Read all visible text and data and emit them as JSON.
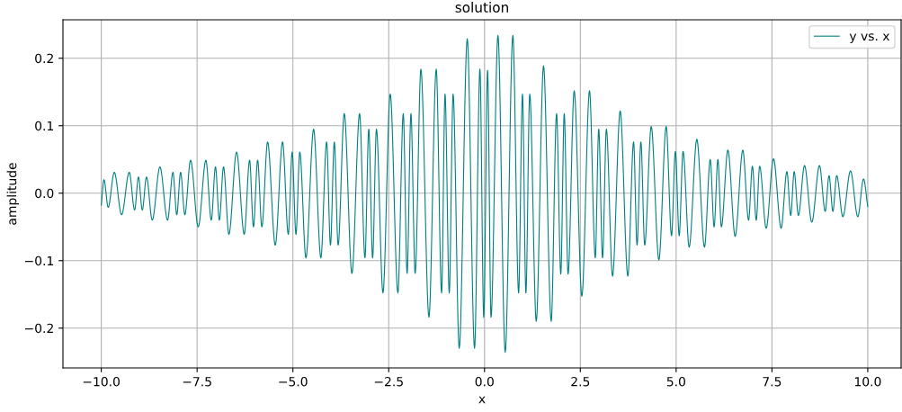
{
  "chart_data": {
    "type": "line",
    "title": "solution",
    "xlabel": "x",
    "ylabel": "amplitude",
    "xlim": [
      -11,
      10.87
    ],
    "ylim": [
      -0.259,
      0.257
    ],
    "xticks": [
      {
        "value": -10,
        "label": "−10.0"
      },
      {
        "value": -7.5,
        "label": "−7.5"
      },
      {
        "value": -5,
        "label": "−5.0"
      },
      {
        "value": -2.5,
        "label": "−2.5"
      },
      {
        "value": 0,
        "label": "0.0"
      },
      {
        "value": 2.5,
        "label": "2.5"
      },
      {
        "value": 5,
        "label": "5.0"
      },
      {
        "value": 7.5,
        "label": "7.5"
      },
      {
        "value": 10,
        "label": "10.0"
      }
    ],
    "yticks": [
      {
        "value": -0.2,
        "label": "−0.2"
      },
      {
        "value": -0.1,
        "label": "−0.1"
      },
      {
        "value": 0,
        "label": "0.0"
      },
      {
        "value": 0.1,
        "label": "0.1"
      },
      {
        "value": 0.2,
        "label": "0.2"
      }
    ],
    "grid": true,
    "legend": "top right",
    "marker": "none",
    "line_style": "solid",
    "series": [
      {
        "name": "y vs. x",
        "color": "#008080",
        "x": [
          -10.0,
          -9.93,
          -9.82,
          -9.66,
          -9.47,
          -9.27,
          -9.13,
          -9.03,
          -8.93,
          -8.82,
          -8.67,
          -8.47,
          -8.27,
          -8.13,
          -8.03,
          -7.93,
          -7.82,
          -7.67,
          -7.47,
          -7.27,
          -7.13,
          -7.02,
          -6.92,
          -6.81,
          -6.67,
          -6.47,
          -6.27,
          -6.13,
          -6.03,
          -5.92,
          -5.81,
          -5.66,
          -5.46,
          -5.27,
          -5.12,
          -5.02,
          -4.92,
          -4.82,
          -4.66,
          -4.46,
          -4.27,
          -4.12,
          -4.02,
          -3.92,
          -3.82,
          -3.66,
          -3.46,
          -3.26,
          -3.12,
          -3.02,
          -2.92,
          -2.82,
          -2.65,
          -2.46,
          -2.26,
          -2.12,
          -2.02,
          -1.92,
          -1.81,
          -1.66,
          -1.45,
          -1.26,
          -1.12,
          -1.03,
          -0.92,
          -0.82,
          -0.66,
          -0.45,
          -0.26,
          -0.12,
          -0.02,
          0.08,
          0.17,
          0.35,
          0.54,
          0.74,
          0.89,
          0.99,
          1.08,
          1.18,
          1.35,
          1.54,
          1.74,
          1.88,
          1.99,
          2.08,
          2.18,
          2.34,
          2.54,
          2.74,
          2.89,
          2.98,
          3.08,
          3.18,
          3.34,
          3.54,
          3.74,
          3.89,
          3.98,
          4.08,
          4.18,
          4.35,
          4.55,
          4.74,
          4.88,
          4.98,
          5.08,
          5.18,
          5.34,
          5.54,
          5.74,
          5.89,
          5.99,
          6.09,
          6.18,
          6.35,
          6.54,
          6.74,
          6.89,
          6.99,
          7.09,
          7.18,
          7.35,
          7.54,
          7.74,
          7.89,
          7.99,
          8.08,
          8.19,
          8.35,
          8.54,
          8.74,
          8.89,
          8.99,
          9.09,
          9.19,
          9.35,
          9.55,
          9.74,
          9.89,
          10.0
        ],
        "values": [
          -0.018,
          0.02,
          -0.021,
          0.031,
          -0.032,
          0.031,
          -0.025,
          0.024,
          -0.025,
          0.024,
          -0.04,
          0.039,
          -0.04,
          0.031,
          -0.032,
          0.031,
          -0.032,
          0.049,
          -0.05,
          0.049,
          -0.04,
          0.039,
          -0.04,
          0.039,
          -0.061,
          0.061,
          -0.061,
          0.049,
          -0.05,
          0.049,
          -0.05,
          0.076,
          -0.077,
          0.076,
          -0.061,
          0.061,
          -0.061,
          0.061,
          -0.096,
          0.095,
          -0.096,
          0.076,
          -0.077,
          0.076,
          -0.077,
          0.118,
          -0.119,
          0.118,
          -0.096,
          0.095,
          -0.096,
          0.095,
          -0.148,
          0.147,
          -0.148,
          0.118,
          -0.119,
          0.118,
          -0.119,
          0.184,
          -0.184,
          0.184,
          -0.148,
          0.147,
          -0.148,
          0.147,
          -0.23,
          0.229,
          -0.23,
          0.184,
          -0.184,
          0.182,
          -0.184,
          0.234,
          -0.236,
          0.234,
          -0.148,
          0.147,
          -0.148,
          0.147,
          -0.19,
          0.189,
          -0.19,
          0.118,
          -0.12,
          0.118,
          -0.12,
          0.152,
          -0.153,
          0.152,
          -0.096,
          0.095,
          -0.096,
          0.095,
          -0.123,
          0.122,
          -0.123,
          0.076,
          -0.077,
          0.076,
          -0.077,
          0.099,
          -0.099,
          0.099,
          -0.063,
          0.062,
          -0.063,
          0.062,
          -0.08,
          0.08,
          -0.08,
          0.05,
          -0.05,
          0.05,
          -0.05,
          0.064,
          -0.064,
          0.064,
          -0.04,
          0.04,
          -0.04,
          0.04,
          -0.052,
          0.051,
          -0.052,
          0.032,
          -0.033,
          0.032,
          -0.033,
          0.041,
          -0.043,
          0.041,
          -0.027,
          0.026,
          -0.027,
          0.026,
          -0.035,
          0.033,
          -0.035,
          0.021,
          -0.02
        ]
      }
    ]
  }
}
